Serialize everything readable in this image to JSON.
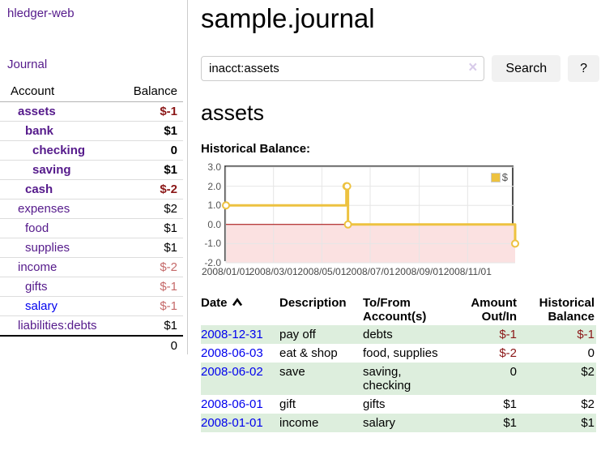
{
  "colors": {
    "link_purple": "#551a8b",
    "link_blue": "#0000ee",
    "negative_strong": "#8b1717",
    "negative_soft": "#c56a6a",
    "row_green": "#ddeedd",
    "chart_line": "#edc240",
    "chart_negative_fill": "#fbe1e1",
    "chart_zero_line": "#a40000",
    "chart_grid": "#e6e6e6",
    "chart_border": "#4f4f4f"
  },
  "sidebar": {
    "app_title": "hledger-web",
    "journal_link": "Journal",
    "accounts_table": {
      "headers": {
        "account": "Account",
        "balance": "Balance"
      },
      "rows": [
        {
          "name": "assets",
          "balance": "$-1",
          "indent": 1,
          "emphasis": true,
          "balance_class": "neg-strong"
        },
        {
          "name": "bank",
          "balance": "$1",
          "indent": 2,
          "emphasis": true,
          "balance_class": ""
        },
        {
          "name": "checking",
          "balance": "0",
          "indent": 3,
          "emphasis": true,
          "balance_class": ""
        },
        {
          "name": "saving",
          "balance": "$1",
          "indent": 3,
          "emphasis": true,
          "balance_class": ""
        },
        {
          "name": "cash",
          "balance": "$-2",
          "indent": 2,
          "emphasis": true,
          "balance_class": "neg-strong"
        },
        {
          "name": "expenses",
          "balance": "$2",
          "indent": 1,
          "emphasis": false,
          "balance_class": ""
        },
        {
          "name": "food",
          "balance": "$1",
          "indent": 2,
          "emphasis": false,
          "balance_class": ""
        },
        {
          "name": "supplies",
          "balance": "$1",
          "indent": 2,
          "emphasis": false,
          "balance_class": ""
        },
        {
          "name": "income",
          "balance": "$-2",
          "indent": 1,
          "emphasis": false,
          "balance_class": "neg-soft"
        },
        {
          "name": "gifts",
          "balance": "$-1",
          "indent": 2,
          "emphasis": false,
          "balance_class": "neg-soft"
        },
        {
          "name": "salary",
          "balance": "$-1",
          "indent": 2,
          "emphasis": false,
          "balance_class": "neg-soft",
          "link_class": "blue"
        },
        {
          "name": "liabilities:debts",
          "balance": "$1",
          "indent": 1,
          "emphasis": false,
          "balance_class": ""
        }
      ],
      "total": "0"
    }
  },
  "main": {
    "title": "sample.journal",
    "search": {
      "value": "inacct:assets",
      "clear_icon": "×",
      "search_button": "Search",
      "help_button": "?"
    },
    "account_heading": "assets",
    "chart_label": "Historical Balance:",
    "register_table": {
      "headers": {
        "date": "Date",
        "description": "Description",
        "accounts": "To/From Account(s)",
        "amount": "Amount Out/In",
        "balance": "Historical Balance"
      },
      "date_sort": "ascending",
      "rows": [
        {
          "date": "2008-12-31",
          "description": "pay off",
          "accounts": "debts",
          "amount": "$-1",
          "amount_class": "neg",
          "balance": "$-1",
          "balance_class": "neg"
        },
        {
          "date": "2008-06-03",
          "description": "eat & shop",
          "accounts": "food, supplies",
          "amount": "$-2",
          "amount_class": "neg",
          "balance": "0",
          "balance_class": ""
        },
        {
          "date": "2008-06-02",
          "description": "save",
          "accounts": "saving, checking",
          "amount": "0",
          "amount_class": "",
          "balance": "$2",
          "balance_class": ""
        },
        {
          "date": "2008-06-01",
          "description": "gift",
          "accounts": "gifts",
          "amount": "$1",
          "amount_class": "",
          "balance": "$2",
          "balance_class": ""
        },
        {
          "date": "2008-01-01",
          "description": "income",
          "accounts": "salary",
          "amount": "$1",
          "amount_class": "",
          "balance": "$1",
          "balance_class": ""
        }
      ]
    }
  },
  "chart_data": {
    "type": "line",
    "title": "Historical Balance",
    "step": true,
    "x": [
      "2008-01-01",
      "2008-06-01",
      "2008-06-02",
      "2008-06-03",
      "2008-12-31"
    ],
    "y": [
      1,
      2,
      2,
      0,
      -1
    ],
    "xlim": [
      "2008-01-01",
      "2008-12-31"
    ],
    "ylim": [
      -2,
      3
    ],
    "x_tick_dates": [
      "2008-01-01",
      "2008-03-01",
      "2008-05-01",
      "2008-07-01",
      "2008-09-01",
      "2008-11-01"
    ],
    "x_tick_labels": [
      "2008/01/01",
      "2008/03/01",
      "2008/05/01",
      "2008/07/01",
      "2008/09/01",
      "2008/11/01"
    ],
    "y_tick_values": [
      3,
      2,
      1,
      0,
      -1,
      -2
    ],
    "y_tick_labels": [
      "3.0",
      "2.0",
      "1.0",
      "0.0",
      "-1.0",
      "-2.0"
    ],
    "grid": true,
    "legend": [
      {
        "label": "$",
        "color": "#edc240"
      }
    ],
    "legend_position": "top-right",
    "negative_region_shaded": true
  }
}
